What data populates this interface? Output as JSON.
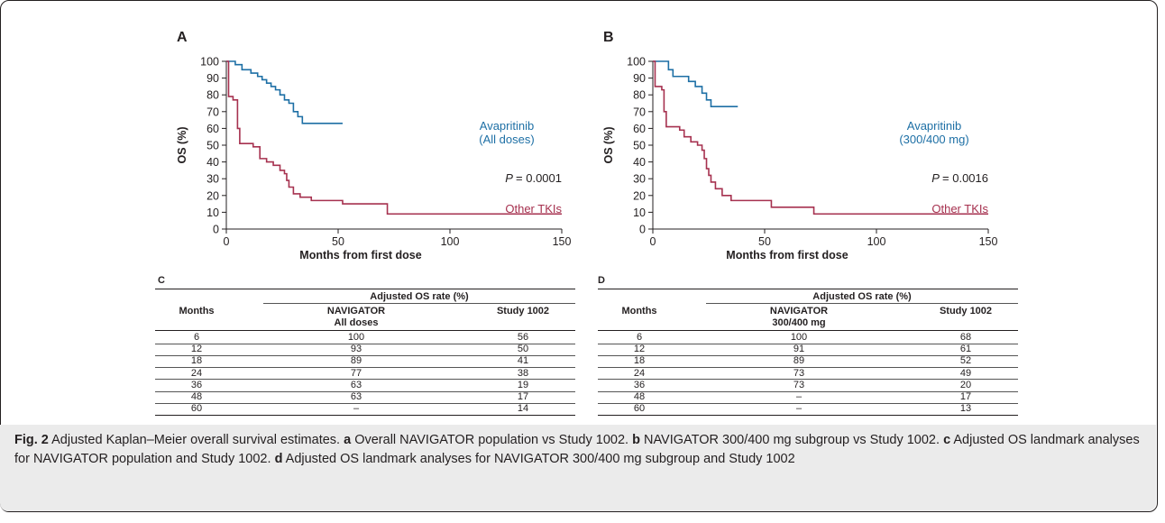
{
  "figure": {
    "caption": {
      "fig_label": "Fig. 2",
      "title": "Adjusted Kaplan–Meier overall survival estimates.",
      "parts": [
        {
          "letter": "a",
          "text": "Overall NAVIGATOR population vs Study 1002."
        },
        {
          "letter": "b",
          "text": "NAVIGATOR 300/400 mg subgroup vs Study 1002."
        },
        {
          "letter": "c",
          "text": "Adjusted OS landmark analyses for NAVIGATOR population and Study 1002."
        },
        {
          "letter": "d",
          "text": "Adjusted OS landmark analyses for NAVIGATOR 300/400 mg subgroup and Study 1002"
        }
      ]
    }
  },
  "chart_data": [
    {
      "panel": "A",
      "type": "line",
      "step": true,
      "xlabel": "Months from first dose",
      "ylabel": "OS (%)",
      "xlim": [
        0,
        150
      ],
      "ylim": [
        0,
        100
      ],
      "xticks": [
        0,
        50,
        100,
        150
      ],
      "yticks": [
        0,
        10,
        20,
        30,
        40,
        50,
        60,
        70,
        80,
        90,
        100
      ],
      "annotation": {
        "p_label": "P",
        "p_value": "= 0.0001"
      },
      "series": [
        {
          "name": "Avapritinib",
          "name2": "(All doses)",
          "color": "#1d6fa5",
          "points": [
            [
              0,
              100
            ],
            [
              4,
              98
            ],
            [
              7,
              95
            ],
            [
              11,
              93
            ],
            [
              14,
              91
            ],
            [
              16,
              89
            ],
            [
              18,
              87
            ],
            [
              20,
              85
            ],
            [
              22,
              83
            ],
            [
              24,
              80
            ],
            [
              26,
              77
            ],
            [
              28,
              75
            ],
            [
              30,
              70
            ],
            [
              32,
              67
            ],
            [
              34,
              63
            ],
            [
              52,
              63
            ]
          ]
        },
        {
          "name": "Other TKIs",
          "color": "#a6314f",
          "points": [
            [
              0,
              100
            ],
            [
              1,
              79
            ],
            [
              3,
              77
            ],
            [
              5,
              60
            ],
            [
              6,
              51
            ],
            [
              12,
              49
            ],
            [
              15,
              42
            ],
            [
              18,
              40
            ],
            [
              21,
              38
            ],
            [
              24,
              35
            ],
            [
              26,
              33
            ],
            [
              27,
              29
            ],
            [
              28,
              25
            ],
            [
              30,
              21
            ],
            [
              33,
              19
            ],
            [
              38,
              17
            ],
            [
              52,
              15
            ],
            [
              72,
              9
            ],
            [
              150,
              9
            ]
          ]
        }
      ]
    },
    {
      "panel": "B",
      "type": "line",
      "step": true,
      "xlabel": "Months from first dose",
      "ylabel": "OS (%)",
      "xlim": [
        0,
        150
      ],
      "ylim": [
        0,
        100
      ],
      "xticks": [
        0,
        50,
        100,
        150
      ],
      "yticks": [
        0,
        10,
        20,
        30,
        40,
        50,
        60,
        70,
        80,
        90,
        100
      ],
      "annotation": {
        "p_label": "P",
        "p_value": "= 0.0016"
      },
      "series": [
        {
          "name": "Avapritinib",
          "name2": "(300/400 mg)",
          "color": "#1d6fa5",
          "points": [
            [
              0,
              100
            ],
            [
              7,
              95
            ],
            [
              9,
              91
            ],
            [
              16,
              88
            ],
            [
              19,
              85
            ],
            [
              22,
              81
            ],
            [
              24,
              77
            ],
            [
              26,
              73
            ],
            [
              38,
              73
            ]
          ]
        },
        {
          "name": "Other TKIs",
          "color": "#a6314f",
          "points": [
            [
              0,
              100
            ],
            [
              1,
              85
            ],
            [
              4,
              83
            ],
            [
              5,
              70
            ],
            [
              6,
              61
            ],
            [
              12,
              59
            ],
            [
              14,
              55
            ],
            [
              17,
              52
            ],
            [
              20,
              50
            ],
            [
              22,
              47
            ],
            [
              23,
              42
            ],
            [
              24,
              36
            ],
            [
              25,
              32
            ],
            [
              26,
              28
            ],
            [
              28,
              24
            ],
            [
              31,
              20
            ],
            [
              35,
              17
            ],
            [
              53,
              13
            ],
            [
              72,
              9
            ],
            [
              150,
              9
            ]
          ]
        }
      ]
    },
    {
      "panel": "C",
      "type": "table",
      "group_header": "Adjusted OS rate (%)",
      "columns": [
        "Months",
        "NAVIGATOR",
        "Study 1002"
      ],
      "col1_sub": "All doses",
      "rows": [
        [
          "6",
          "100",
          "56"
        ],
        [
          "12",
          "93",
          "50"
        ],
        [
          "18",
          "89",
          "41"
        ],
        [
          "24",
          "77",
          "38"
        ],
        [
          "36",
          "63",
          "19"
        ],
        [
          "48",
          "63",
          "17"
        ],
        [
          "60",
          "–",
          "14"
        ]
      ]
    },
    {
      "panel": "D",
      "type": "table",
      "group_header": "Adjusted OS rate (%)",
      "columns": [
        "Months",
        "NAVIGATOR",
        "Study 1002"
      ],
      "col1_sub": "300/400 mg",
      "rows": [
        [
          "6",
          "100",
          "68"
        ],
        [
          "12",
          "91",
          "61"
        ],
        [
          "18",
          "89",
          "52"
        ],
        [
          "24",
          "73",
          "49"
        ],
        [
          "36",
          "73",
          "20"
        ],
        [
          "48",
          "–",
          "17"
        ],
        [
          "60",
          "–",
          "13"
        ]
      ]
    }
  ]
}
